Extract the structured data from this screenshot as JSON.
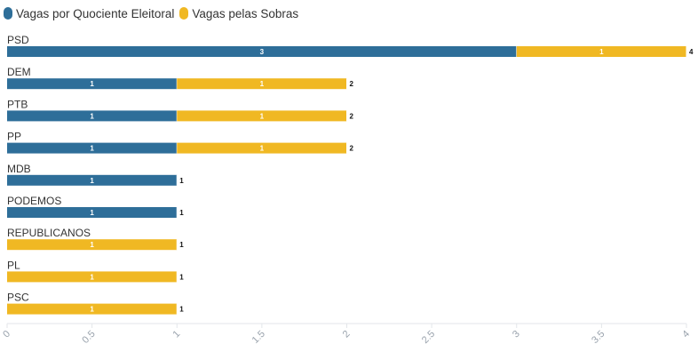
{
  "chart_data": {
    "type": "bar",
    "orientation": "horizontal",
    "stacked": true,
    "categories": [
      "PSD",
      "DEM",
      "PTB",
      "PP",
      "MDB",
      "PODEMOS",
      "REPUBLICANOS",
      "PL",
      "PSC"
    ],
    "series": [
      {
        "name": "Vagas por Quociente Eleitoral",
        "color": "#2e6e99",
        "values": [
          3,
          1,
          1,
          1,
          1,
          1,
          0,
          0,
          0
        ]
      },
      {
        "name": "Vagas pelas Sobras",
        "color": "#f0b823",
        "values": [
          1,
          1,
          1,
          1,
          0,
          0,
          1,
          1,
          1
        ]
      }
    ],
    "totals": [
      4,
      2,
      2,
      2,
      1,
      1,
      1,
      1,
      1
    ],
    "xlim": [
      0,
      4
    ],
    "xticks": [
      "0",
      "0.5",
      "1",
      "1.5",
      "2",
      "2.5",
      "3",
      "3.5",
      "4"
    ],
    "xlabel": "",
    "ylabel": "",
    "legend_position": "top-left",
    "grid": false
  }
}
